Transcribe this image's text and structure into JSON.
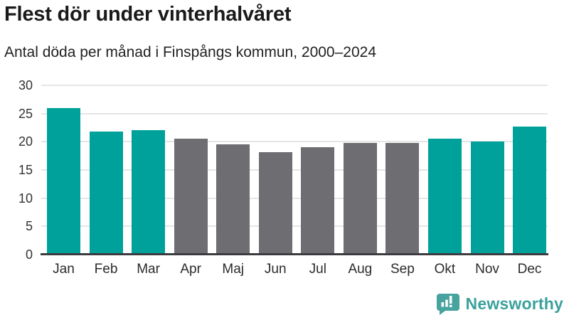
{
  "header": {
    "title": "Flest dör under vinterhalvåret",
    "subtitle": "Antal döda per månad i Finspångs kommun, 2000–2024"
  },
  "chart_data": {
    "type": "bar",
    "title": "Flest dör under vinterhalvåret",
    "subtitle": "Antal döda per månad i Finspångs kommun, 2000–2024",
    "categories": [
      "Jan",
      "Feb",
      "Mar",
      "Apr",
      "Maj",
      "Jun",
      "Jul",
      "Aug",
      "Sep",
      "Okt",
      "Nov",
      "Dec"
    ],
    "values": [
      26.0,
      21.8,
      22.1,
      20.6,
      19.5,
      18.2,
      19.0,
      19.8,
      19.8,
      20.5,
      20.1,
      22.7
    ],
    "bar_colors": [
      "teal",
      "teal",
      "teal",
      "gray",
      "gray",
      "gray",
      "gray",
      "gray",
      "gray",
      "teal",
      "teal",
      "teal"
    ],
    "colors": {
      "teal": "#00a19b",
      "gray": "#6d6d72",
      "gridline": "#e5e5e6",
      "axis": "#3c3c40"
    },
    "xlabel": "",
    "ylabel": "",
    "ylim": [
      0,
      30
    ],
    "yticks": [
      0,
      5,
      10,
      15,
      20,
      25,
      30
    ],
    "grid": "horizontal",
    "legend": "none"
  },
  "branding": {
    "logo_text": "Newsworthy",
    "logo_icon": "bar-chart-speech-bubble-icon",
    "logo_color": "#46a39e",
    "text_color": "#3ba19c"
  }
}
